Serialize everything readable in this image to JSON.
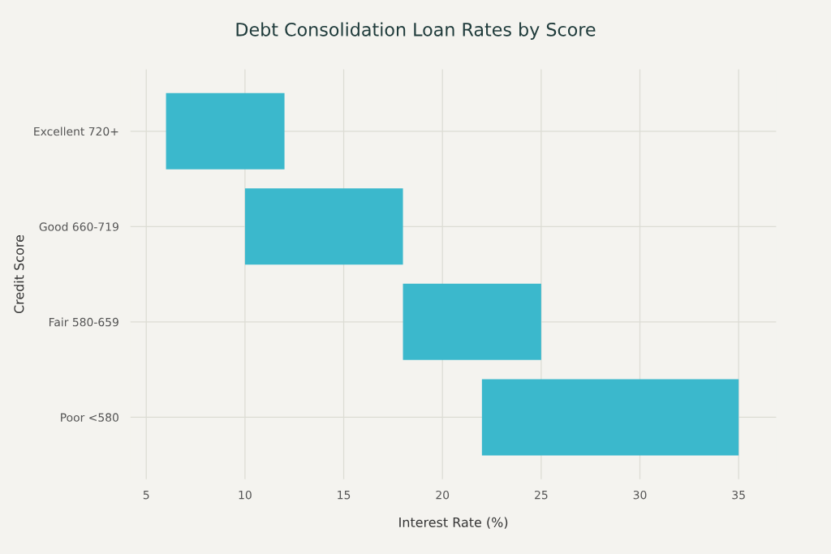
{
  "chart_data": {
    "type": "bar",
    "orientation": "horizontal",
    "title": "Debt Consolidation Loan Rates by Score",
    "xlabel": "Interest Rate (%)",
    "ylabel": "Credit Score",
    "categories": [
      "Excellent 720+",
      "Good 660-719",
      "Fair 580-659",
      "Poor <580"
    ],
    "base": [
      6,
      10,
      18,
      22
    ],
    "values": [
      6,
      8,
      7,
      13
    ],
    "color": "#3bb8cc",
    "xlim": [
      4.2,
      36.9
    ],
    "xticks": [
      5,
      10,
      15,
      20,
      25,
      30,
      35
    ],
    "grid": true
  }
}
